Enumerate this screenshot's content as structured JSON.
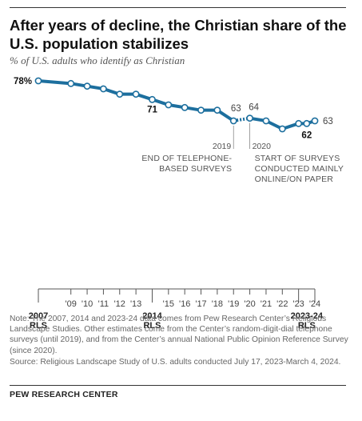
{
  "header": {
    "title": "After years of decline, the Christian share of the U.S. population stabilizes",
    "subtitle": "% of U.S. adults who identify as Christian"
  },
  "colors": {
    "line": "#1d6f9e",
    "marker_fill": "#ffffff",
    "axis": "#555555",
    "text": "#222222",
    "muted": "#555555"
  },
  "chart_data": {
    "type": "line",
    "ylabel": "% of U.S. adults who identify as Christian",
    "x": [
      2007,
      2009,
      2010,
      2011,
      2012,
      2013,
      2014,
      2015,
      2016,
      2017,
      2018,
      2019,
      2020,
      2021,
      2022,
      2023,
      2023.5,
      2024
    ],
    "y": [
      78,
      77,
      76,
      75,
      73,
      73,
      71,
      69,
      68,
      67,
      67,
      63,
      64,
      63,
      60,
      62,
      62,
      63
    ],
    "data_labels": [
      {
        "index": 0,
        "text": "78%"
      },
      {
        "index": 6,
        "text": "71"
      },
      {
        "index": 11,
        "text": "63"
      },
      {
        "index": 12,
        "text": "64"
      },
      {
        "index": 16,
        "text": "62"
      },
      {
        "index": 17,
        "text": "63"
      }
    ],
    "bold_labels": [
      "78%",
      "71",
      "62"
    ],
    "dotted_segment": [
      2019,
      2020
    ],
    "ylim": [
      0,
      100
    ],
    "x_axis": {
      "ticks": [
        {
          "x": 2007,
          "text": "2007\nRLS",
          "bold": true
        },
        {
          "x": 2009,
          "text": "'09"
        },
        {
          "x": 2010,
          "text": "'10"
        },
        {
          "x": 2011,
          "text": "'11"
        },
        {
          "x": 2012,
          "text": "'12"
        },
        {
          "x": 2013,
          "text": "'13"
        },
        {
          "x": 2014,
          "text": "2014\nRLS",
          "bold": true
        },
        {
          "x": 2015,
          "text": "'15"
        },
        {
          "x": 2016,
          "text": "'16"
        },
        {
          "x": 2017,
          "text": "'17"
        },
        {
          "x": 2018,
          "text": "'18"
        },
        {
          "x": 2019,
          "text": "'19"
        },
        {
          "x": 2020,
          "text": "'20"
        },
        {
          "x": 2021,
          "text": "'21"
        },
        {
          "x": 2022,
          "text": "'22"
        },
        {
          "x": 2023,
          "text": "'23"
        },
        {
          "x": 2024,
          "text": "'24"
        }
      ],
      "range_label": {
        "from": 2023,
        "to": 2024,
        "text": "2023-24\nRLS"
      }
    },
    "annotations": [
      {
        "x": 2019,
        "year": "2019",
        "text": "END OF TELEPHONE-\nBASED SURVEYS",
        "align": "right"
      },
      {
        "x": 2020,
        "year": "2020",
        "text": "START OF SURVEYS\nCONDUCTED MAINLY\nONLINE/ON PAPER",
        "align": "left"
      }
    ]
  },
  "footer": {
    "note": "Note: The 2007, 2014 and 2023-24 data comes from Pew Research Center’s Religious Landscape Studies. Other estimates come from the Center’s random-digit-dial telephone surveys (until 2019), and from the Center’s annual National Public Opinion Reference Survey (since 2020).",
    "source": "Source: Religious Landscape Study of U.S. adults conducted July 17, 2023-March 4, 2024.",
    "org": "PEW RESEARCH CENTER"
  }
}
